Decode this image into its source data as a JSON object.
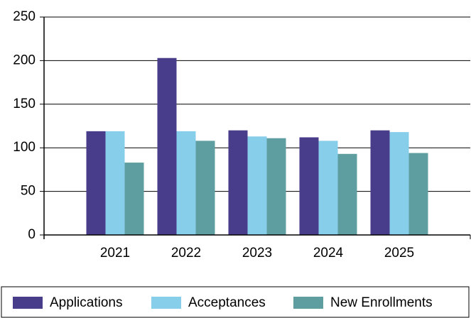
{
  "chart_data": {
    "type": "bar",
    "categories": [
      "2021",
      "2022",
      "2023",
      "2024",
      "2025"
    ],
    "series": [
      {
        "name": "Applications",
        "color": "#483d8b",
        "values": [
          119,
          203,
          120,
          112,
          120
        ]
      },
      {
        "name": "Acceptances",
        "color": "#87ceeb",
        "values": [
          119,
          119,
          113,
          108,
          118
        ]
      },
      {
        "name": "New Enrollments",
        "color": "#5f9ea0",
        "values": [
          83,
          108,
          111,
          93,
          94
        ]
      }
    ],
    "ylim": [
      0,
      250
    ],
    "yticks": [
      0,
      50,
      100,
      150,
      200,
      250
    ],
    "grid": true,
    "legend": "bottom"
  }
}
